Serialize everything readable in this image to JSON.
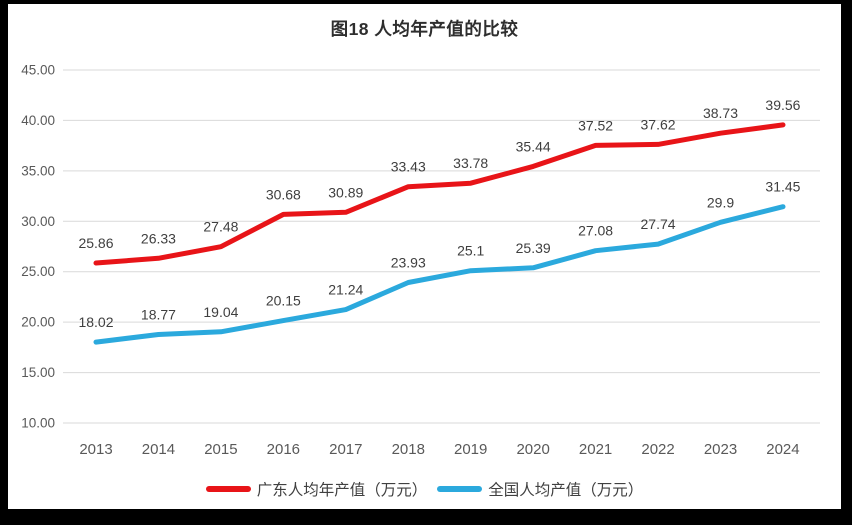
{
  "chart_data": {
    "type": "line",
    "title": "图18 人均年产值的比较",
    "categories": [
      "2013",
      "2014",
      "2015",
      "2016",
      "2017",
      "2018",
      "2019",
      "2020",
      "2021",
      "2022",
      "2023",
      "2024"
    ],
    "series": [
      {
        "name": "广东人均年产值（万元）",
        "color": "#e81418",
        "values": [
          25.86,
          26.33,
          27.48,
          30.68,
          30.89,
          33.43,
          33.78,
          35.44,
          37.52,
          37.62,
          38.73,
          39.56
        ],
        "labels": [
          "25.86",
          "26.33",
          "27.48",
          "30.68",
          "30.89",
          "33.43",
          "33.78",
          "35.44",
          "37.52",
          "37.62",
          "38.73",
          "39.56"
        ]
      },
      {
        "name": "全国人均产值（万元）",
        "color": "#2ba9dd",
        "values": [
          18.02,
          18.77,
          19.04,
          20.15,
          21.24,
          23.93,
          25.1,
          25.39,
          27.08,
          27.74,
          29.9,
          31.45
        ],
        "labels": [
          "18.02",
          "18.77",
          "19.04",
          "20.15",
          "21.24",
          "23.93",
          "25.1",
          "25.39",
          "27.08",
          "27.74",
          "29.9",
          "31.45"
        ]
      }
    ],
    "ylim": [
      10,
      45
    ],
    "ytick_step": 5,
    "ytick_labels": [
      "10.00",
      "15.00",
      "20.00",
      "25.00",
      "30.00",
      "35.00",
      "40.00",
      "45.00"
    ],
    "xlabel": "",
    "ylabel": "",
    "grid": true,
    "legend_position": "bottom",
    "colors": {
      "background": "#ffffff",
      "frame": "#000000",
      "gridline": "#d9d9d9",
      "tick_text": "#595959",
      "data_label_text": "#3f3f3f",
      "title_text": "#2e2e2e"
    }
  }
}
